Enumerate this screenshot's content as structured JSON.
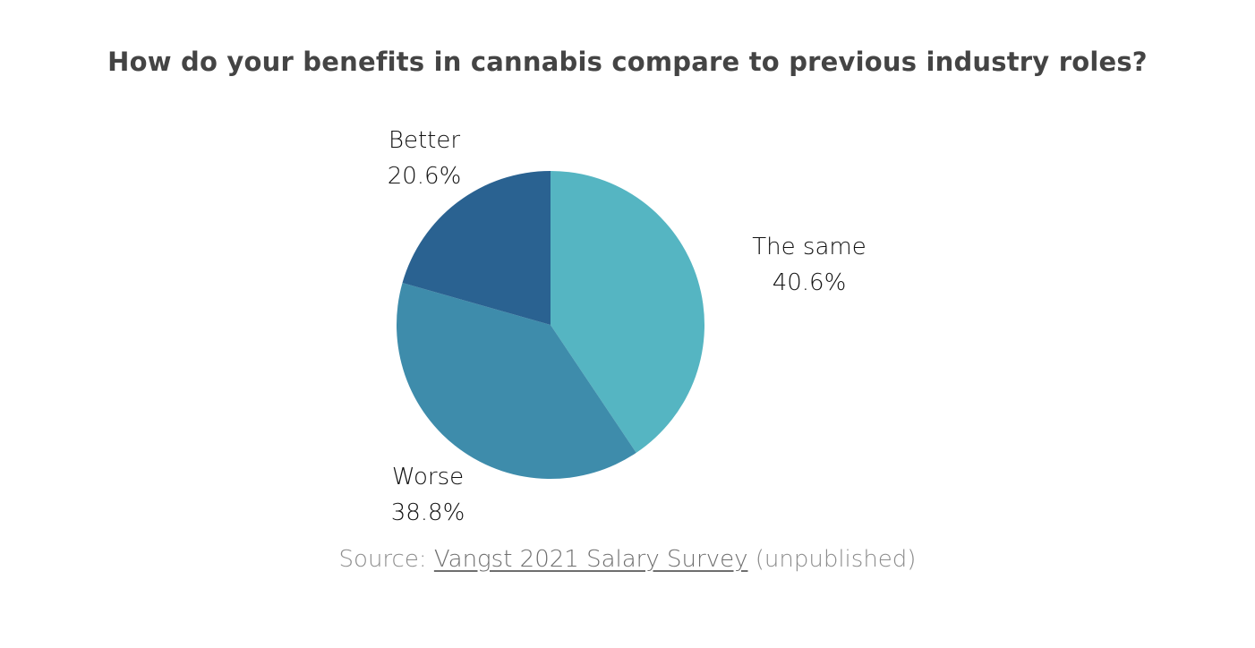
{
  "chart_data": {
    "type": "pie",
    "title": "How do your benefits in cannabis compare to previous industry roles?",
    "slices": [
      {
        "label": "The same",
        "value": 40.6,
        "value_text": "40.6%",
        "color": "#55b5c2"
      },
      {
        "label": "Worse",
        "value": 38.8,
        "value_text": "38.8%",
        "color": "#3e8cab"
      },
      {
        "label": "Better",
        "value": 20.6,
        "value_text": "20.6%",
        "color": "#2a6291"
      }
    ],
    "start_angle": "12 o'clock",
    "direction": "clockwise",
    "labels_position": "outside"
  },
  "source": {
    "prefix": "Source: ",
    "link_text": "Vangst 2021 Salary Survey",
    "suffix": " (unpublished)"
  }
}
